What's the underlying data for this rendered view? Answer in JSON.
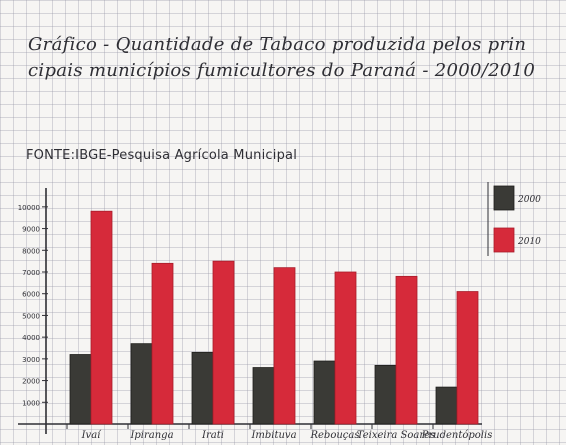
{
  "header": {
    "title_line1": "Gráfico - Quantidade de Tabaco produzida pelos prin",
    "title_line2": "cipais municípios fumicultores do Paraná - 2000/2010",
    "source": "FONTE:IBGE-Pesquisa Agrícola Municipal"
  },
  "chart_data": {
    "type": "bar",
    "title": "Gráfico - Quantidade de Tabaco produzida pelos principais municípios fumicultores do Paraná - 2000/2010",
    "xlabel": "",
    "ylabel": "",
    "categories": [
      "Ivaí",
      "Ipiranga",
      "Irati",
      "Imbituva",
      "Rebouças",
      "Teixeira Soares",
      "Prudentópolis"
    ],
    "series": [
      {
        "name": "2000",
        "color": "#3a3a36",
        "values": [
          3200,
          3700,
          3300,
          2600,
          2900,
          2700,
          1700
        ]
      },
      {
        "name": "2010",
        "color": "#d62a3a",
        "values": [
          9800,
          7400,
          7500,
          7200,
          7000,
          6800,
          6100
        ]
      }
    ],
    "ytick_labels": [
      "1000",
      "2000",
      "3000",
      "4000",
      "5000",
      "6000",
      "7000",
      "8000",
      "9000",
      "10000"
    ],
    "ylim": [
      0,
      10500
    ],
    "legend_position": "right",
    "grid": true
  }
}
